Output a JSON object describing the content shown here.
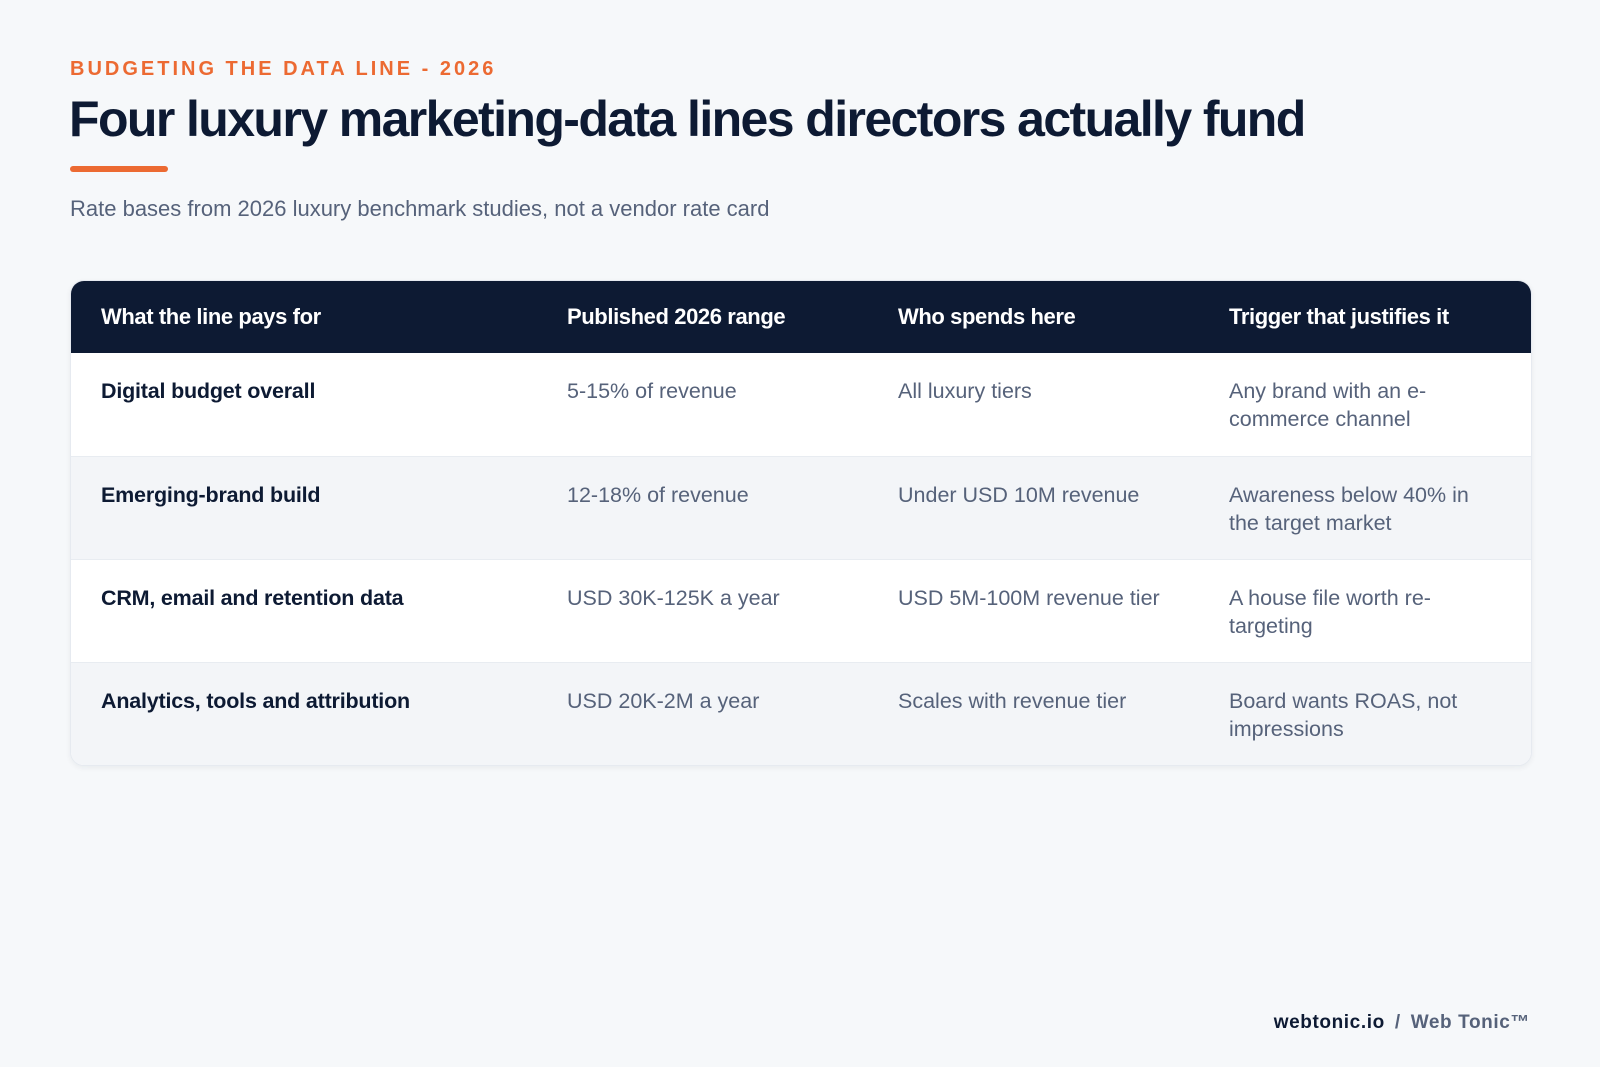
{
  "header": {
    "eyebrow": "BUDGETING THE DATA LINE - 2026",
    "title": "Four luxury marketing-data lines directors actually fund",
    "subtitle": "Rate bases from 2026 luxury benchmark studies, not a vendor rate card"
  },
  "table": {
    "columns": [
      "What the line pays for",
      "Published 2026 range",
      "Who spends here",
      "Trigger that justifies it"
    ],
    "rows": [
      {
        "line": "Digital budget overall",
        "range": "5-15% of revenue",
        "who": "All luxury tiers",
        "trigger": "Any brand with an e-commerce channel"
      },
      {
        "line": "Emerging-brand build",
        "range": "12-18% of revenue",
        "who": "Under USD 10M revenue",
        "trigger": "Awareness below 40% in the target market"
      },
      {
        "line": "CRM, email and retention data",
        "range": "USD 30K-125K a year",
        "who": "USD 5M-100M revenue tier",
        "trigger": "A house file worth re-targeting"
      },
      {
        "line": "Analytics, tools and attribution",
        "range": "USD 20K-2M a year",
        "who": "Scales with revenue tier",
        "trigger": "Board wants ROAS, not impressions"
      }
    ]
  },
  "footer": {
    "domain": "webtonic.io",
    "separator": "/",
    "brand": "Web Tonic™"
  },
  "colors": {
    "accent": "#ec6a32",
    "navy": "#0d1a33",
    "muted_text": "#56627a",
    "background": "#f6f8fa"
  }
}
